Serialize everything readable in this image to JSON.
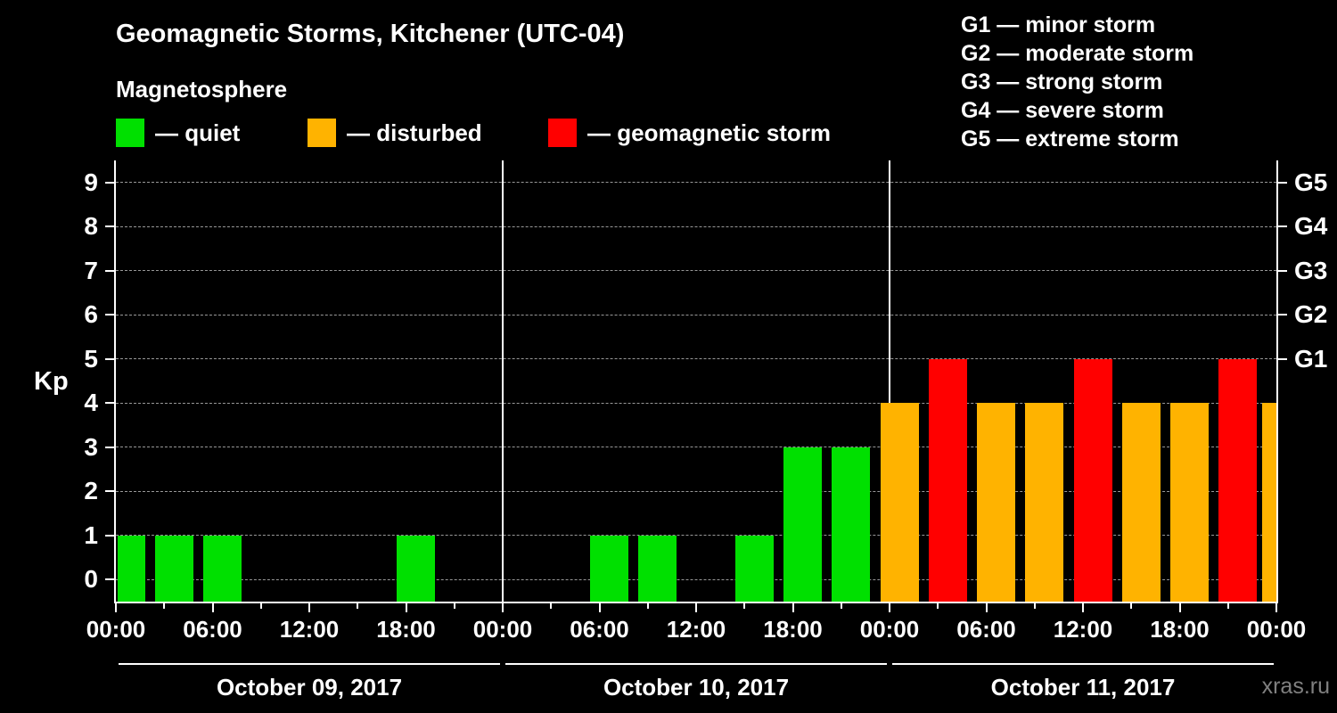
{
  "header": {
    "title": "Geomagnetic Storms, Kitchener (UTC-04)",
    "subtitle": "Magnetosphere"
  },
  "legend": {
    "items": [
      {
        "label": "— quiet",
        "color": "#00e000"
      },
      {
        "label": "— disturbed",
        "color": "#ffb300"
      },
      {
        "label": "— geomagnetic storm",
        "color": "#ff0000"
      }
    ]
  },
  "g_legend": {
    "items": [
      {
        "label": "G1 — minor storm"
      },
      {
        "label": "G2 — moderate storm"
      },
      {
        "label": "G3 — strong storm"
      },
      {
        "label": "G4 — severe storm"
      },
      {
        "label": "G5 — extreme storm"
      }
    ]
  },
  "chart_data": {
    "type": "bar",
    "title": "Geomagnetic Storms, Kitchener (UTC-04)",
    "ylabel": "Kp",
    "ylim": [
      -0.5,
      9.5
    ],
    "y_ticks": [
      0,
      1,
      2,
      3,
      4,
      5,
      6,
      7,
      8,
      9
    ],
    "right_ticks": [
      {
        "kp": 5,
        "label": "G1"
      },
      {
        "kp": 6,
        "label": "G2"
      },
      {
        "kp": 7,
        "label": "G3"
      },
      {
        "kp": 8,
        "label": "G4"
      },
      {
        "kp": 9,
        "label": "G5"
      }
    ],
    "interval_hours": 3,
    "time_labels": [
      "00:00",
      "06:00",
      "12:00",
      "18:00"
    ],
    "end_time_label": "00:00",
    "days": [
      {
        "date_label": "October 09, 2017",
        "kp": [
          1,
          1,
          1,
          0,
          0,
          0,
          1,
          0
        ]
      },
      {
        "date_label": "October 10, 2017",
        "kp": [
          0,
          0,
          1,
          1,
          0,
          1,
          3,
          3
        ]
      },
      {
        "date_label": "October 11, 2017",
        "kp": [
          4,
          5,
          4,
          4,
          5,
          4,
          4,
          5
        ]
      }
    ],
    "overflow_bar": {
      "kp": 4
    },
    "colors": {
      "quiet": "#00e000",
      "disturbed": "#ffb300",
      "storm": "#ff0000"
    },
    "thresholds": {
      "disturbed_min": 4,
      "storm_min": 5
    },
    "grid": "dashed horizontal lines at integer Kp values",
    "legend_position": "top"
  },
  "footer": {
    "watermark": "xras.ru"
  }
}
